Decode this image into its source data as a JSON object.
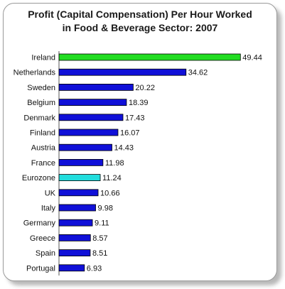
{
  "chart_data": {
    "type": "bar",
    "orientation": "horizontal",
    "title_line1": "Profit (Capital Compensation) Per Hour Worked",
    "title_line2": "in Food & Beverage Sector: 2007",
    "categories": [
      "Ireland",
      "Netherlands",
      "Sweden",
      "Belgium",
      "Denmark",
      "Finland",
      "Austria",
      "France",
      "Eurozone",
      "UK",
      "Italy",
      "Germany",
      "Greece",
      "Spain",
      "Portugal"
    ],
    "values": [
      49.44,
      34.62,
      20.22,
      18.39,
      17.43,
      16.07,
      14.43,
      11.98,
      11.24,
      10.66,
      9.98,
      9.11,
      8.57,
      8.51,
      6.93
    ],
    "value_labels": [
      "49.44",
      "34.62",
      "20.22",
      "18.39",
      "17.43",
      "16.07",
      "14.43",
      "11.98",
      "11.24",
      "10.66",
      "9.98",
      "9.11",
      "8.57",
      "8.51",
      "6.93"
    ],
    "colors": [
      "#22dd22",
      "#1010d8",
      "#1010d8",
      "#1010d8",
      "#1010d8",
      "#1010d8",
      "#1010d8",
      "#1010d8",
      "#22dddd",
      "#1010d8",
      "#1010d8",
      "#1010d8",
      "#1010d8",
      "#1010d8",
      "#1010d8"
    ],
    "xlim": [
      0,
      55
    ],
    "grid": false,
    "legend": "none"
  }
}
